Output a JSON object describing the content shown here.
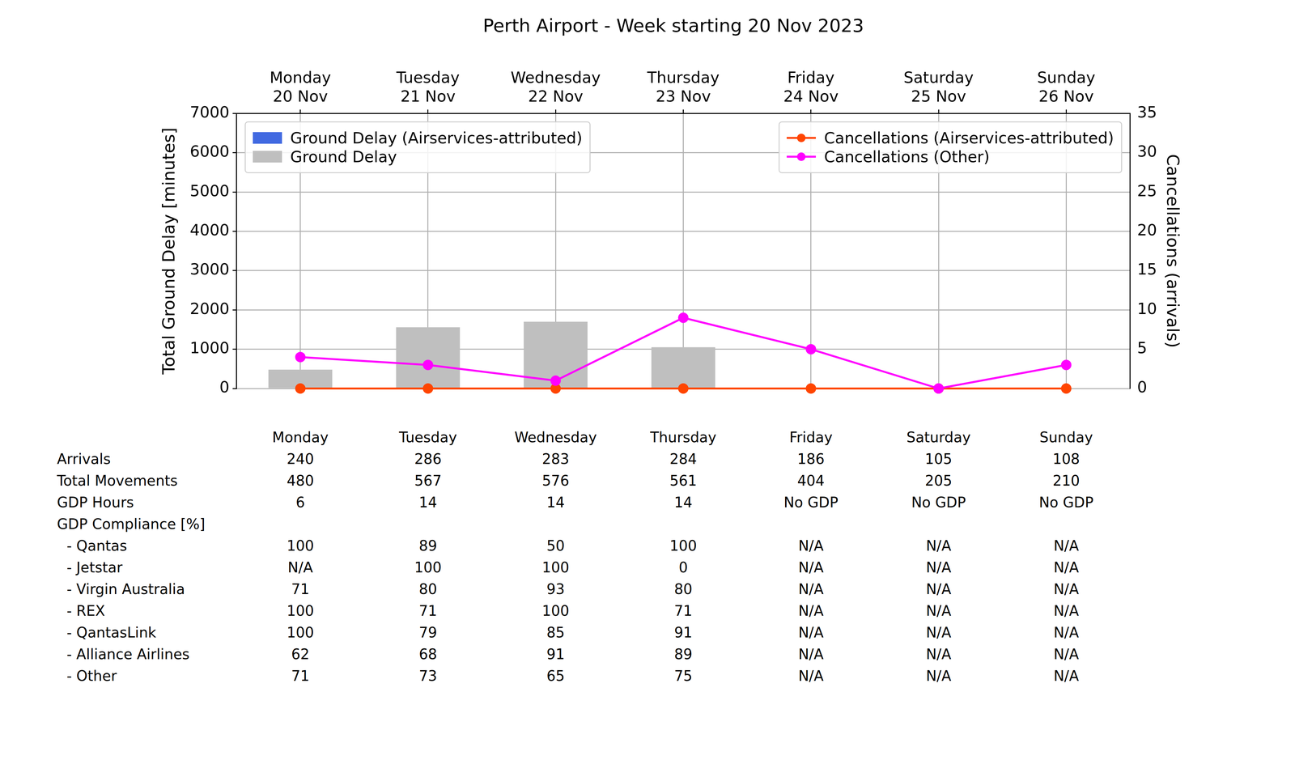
{
  "chart_data": {
    "type": "bar",
    "title": "Perth Airport - Week starting 20 Nov 2023",
    "categories": [
      "Monday\n20 Nov",
      "Tuesday\n21 Nov",
      "Wednesday\n22 Nov",
      "Thursday\n23 Nov",
      "Friday\n24 Nov",
      "Saturday\n25 Nov",
      "Sunday\n26 Nov"
    ],
    "y_label": "Total Ground Delay [minutes]",
    "y2_label": "Cancellations (arrivals)",
    "ylim": [
      0,
      7000
    ],
    "yticks": [
      0,
      1000,
      2000,
      3000,
      4000,
      5000,
      6000,
      7000
    ],
    "y2lim": [
      0,
      35
    ],
    "y2ticks": [
      0,
      5,
      10,
      15,
      20,
      25,
      30,
      35
    ],
    "grid": true,
    "series": [
      {
        "name": "Ground Delay (Airservices-attributed)",
        "type": "bar",
        "color": "#4169e1",
        "legend": "upper left",
        "values": [
          0,
          0,
          0,
          0,
          0,
          0,
          0
        ]
      },
      {
        "name": "Ground Delay",
        "type": "bar",
        "color": "#bfbfbf",
        "legend": "upper left",
        "values": [
          480,
          1560,
          1700,
          1050,
          0,
          0,
          0
        ]
      },
      {
        "name": "Cancellations (Airservices-attributed)",
        "type": "line",
        "axis": "y2",
        "color": "#ff4500",
        "marker": "circle",
        "legend": "upper right",
        "values": [
          0,
          0,
          0,
          0,
          0,
          0,
          0
        ]
      },
      {
        "name": "Cancellations (Other)",
        "type": "line",
        "axis": "y2",
        "color": "#ff00ff",
        "marker": "circle",
        "legend": "upper right",
        "values": [
          4,
          3,
          1,
          9,
          5,
          0,
          3
        ]
      }
    ]
  },
  "table": {
    "columns": [
      "Monday",
      "Tuesday",
      "Wednesday",
      "Thursday",
      "Friday",
      "Saturday",
      "Sunday"
    ],
    "rows": [
      {
        "label": "Arrivals",
        "values": [
          240,
          286,
          283,
          284,
          186,
          105,
          108
        ]
      },
      {
        "label": "Total Movements",
        "values": [
          480,
          567,
          576,
          561,
          404,
          205,
          210
        ]
      },
      {
        "label": "GDP Hours",
        "values": [
          6,
          14,
          14,
          14,
          "No GDP",
          "No GDP",
          "No GDP"
        ]
      },
      {
        "label": "GDP Compliance [%]",
        "rows": [
          {
            "label": "- Qantas",
            "values": [
              100,
              89,
              50,
              100,
              "N/A",
              "N/A",
              "N/A"
            ]
          },
          {
            "label": "- Jetstar",
            "values": [
              "N/A",
              100,
              100,
              0,
              "N/A",
              "N/A",
              "N/A"
            ]
          },
          {
            "label": "- Virgin Australia",
            "values": [
              71,
              80,
              93,
              80,
              "N/A",
              "N/A",
              "N/A"
            ]
          },
          {
            "label": "- REX",
            "values": [
              100,
              71,
              100,
              71,
              "N/A",
              "N/A",
              "N/A"
            ]
          },
          {
            "label": "- QantasLink",
            "values": [
              100,
              79,
              85,
              91,
              "N/A",
              "N/A",
              "N/A"
            ]
          },
          {
            "label": "- Alliance Airlines",
            "values": [
              62,
              68,
              91,
              89,
              "N/A",
              "N/A",
              "N/A"
            ]
          },
          {
            "label": "- Other",
            "values": [
              71,
              73,
              65,
              75,
              "N/A",
              "N/A",
              "N/A"
            ]
          }
        ]
      }
    ]
  }
}
